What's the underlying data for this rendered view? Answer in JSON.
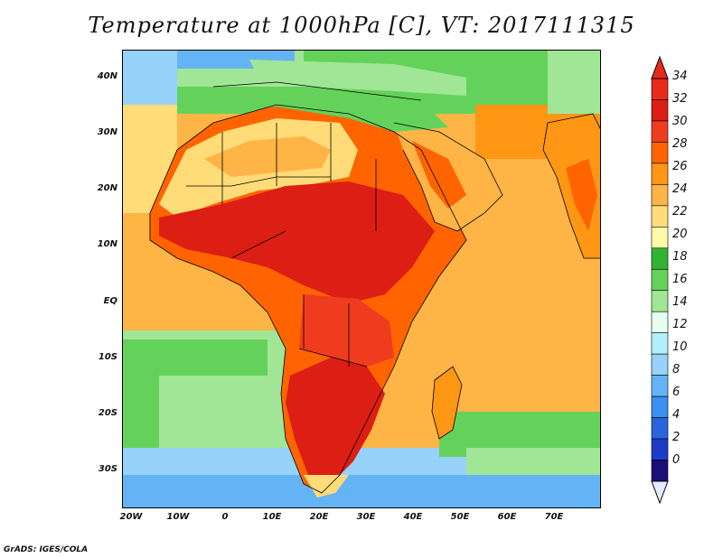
{
  "title": "Temperature at 1000hPa [C], VT: 2017111315",
  "credit": "GrADS: IGES/COLA",
  "lat_labels": [
    "40N",
    "30N",
    "20N",
    "10N",
    "EQ",
    "10S",
    "20S",
    "30S"
  ],
  "lon_labels": [
    "20W",
    "10W",
    "0",
    "10E",
    "20E",
    "30E",
    "40E",
    "50E",
    "60E",
    "70E"
  ],
  "colorbar": {
    "labels": [
      "34",
      "32",
      "30",
      "28",
      "26",
      "24",
      "22",
      "20",
      "18",
      "16",
      "14",
      "12",
      "10",
      "8",
      "6",
      "4",
      "2",
      "0"
    ],
    "colors": [
      "#e8e8ff",
      "#1a0e78",
      "#1e3cc8",
      "#2a64dc",
      "#3c8ef0",
      "#64b4f5",
      "#96d2fa",
      "#b4f0fa",
      "#e6fff0",
      "#a0e696",
      "#64d25a",
      "#32b432",
      "#fffaaa",
      "#ffdc78",
      "#ffb446",
      "#ff9614",
      "#ff6400",
      "#f03c1e",
      "#dc1e14",
      "#e82a1a"
    ]
  },
  "legend_colors": {
    "ocean_warm": "#ffb446",
    "land_hot": "#dc1e14",
    "land_warm": "#ff6400",
    "sahara": "#ffdc78",
    "mediterranean": "#64d25a",
    "south_ocean": "#96d2fa"
  }
}
